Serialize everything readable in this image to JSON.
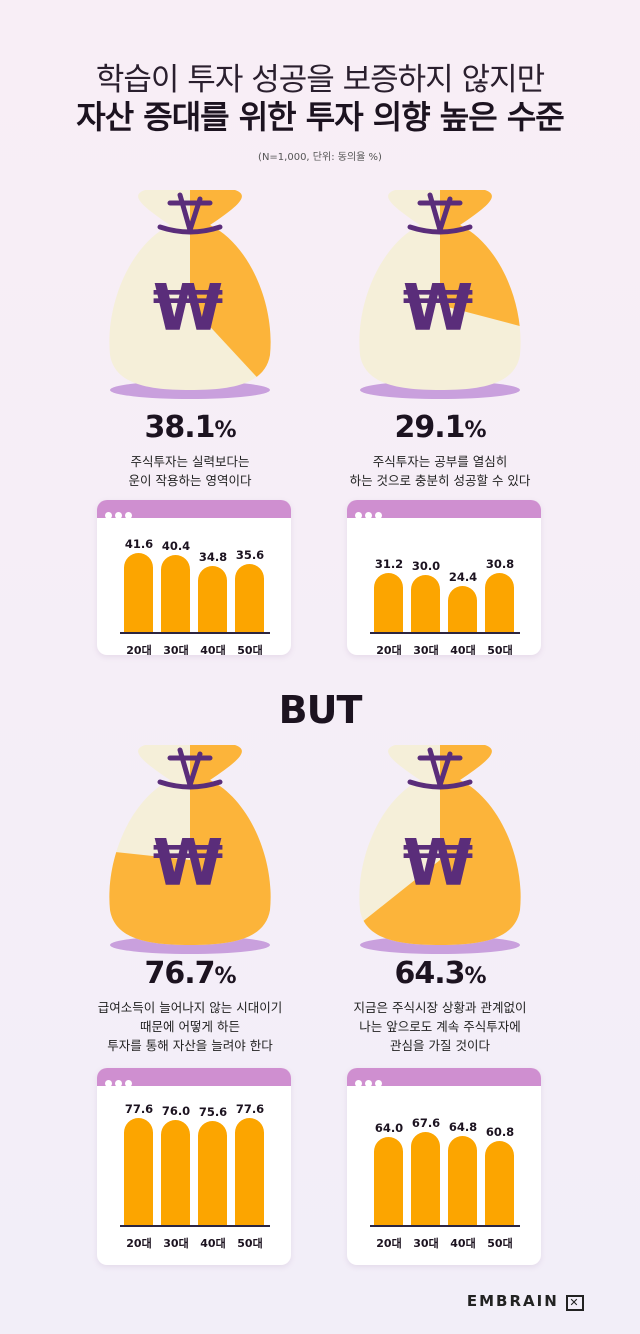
{
  "header": {
    "title_line1": "학습이 투자 성공을 보증하지 않지만",
    "title_line2": "자산 증대를 위한 투자 의향 높은 수준",
    "note": "(N=1,000, 단위: 동의율 %)"
  },
  "colors": {
    "accent": "#fca500",
    "purple": "#5a2d7a",
    "card_header": "#cf8fd0",
    "bag": "#f5efd9"
  },
  "divider": "BUT",
  "brand": "EMBRAIN",
  "chart_data": [
    {
      "type": "bar",
      "total": "38.1",
      "unit": "%",
      "description": "주식투자는 실력보다는\n운이 작용하는 영역이다",
      "categories": [
        "20대",
        "30대",
        "40대",
        "50대"
      ],
      "values": [
        41.6,
        40.4,
        34.8,
        35.6
      ],
      "value_labels": [
        "41.6",
        "40.4",
        "34.8",
        "35.6"
      ]
    },
    {
      "type": "bar",
      "total": "29.1",
      "unit": "%",
      "description": "주식투자는 공부를 열심히\n하는 것으로 충분히 성공할 수 있다",
      "categories": [
        "20대",
        "30대",
        "40대",
        "50대"
      ],
      "values": [
        31.2,
        30.0,
        24.4,
        30.8
      ],
      "value_labels": [
        "31.2",
        "30.0",
        "24.4",
        "30.8"
      ]
    },
    {
      "type": "bar",
      "total": "76.7",
      "unit": "%",
      "description": "급여소득이 늘어나지 않는 시대이기\n때문에 어떻게 하든\n투자를 통해 자산을 늘려야 한다",
      "categories": [
        "20대",
        "30대",
        "40대",
        "50대"
      ],
      "values": [
        77.6,
        76.0,
        75.6,
        77.6
      ],
      "value_labels": [
        "77.6",
        "76.0",
        "75.6",
        "77.6"
      ]
    },
    {
      "type": "bar",
      "total": "64.3",
      "unit": "%",
      "description": "지금은 주식시장 상황과 관계없이\n나는 앞으로도 계속 주식투자에\n관심을 가질 것이다",
      "categories": [
        "20대",
        "30대",
        "40대",
        "50대"
      ],
      "values": [
        64.0,
        67.6,
        64.8,
        60.8
      ],
      "value_labels": [
        "64.0",
        "67.6",
        "64.8",
        "60.8"
      ]
    }
  ]
}
